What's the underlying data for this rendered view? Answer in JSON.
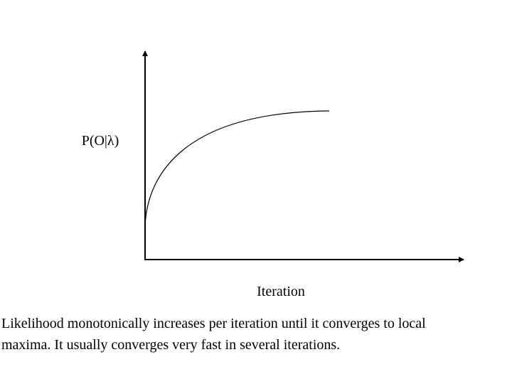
{
  "diagram": {
    "y_axis_label": "P(O|λ)",
    "x_axis_label": "Iteration"
  },
  "caption": {
    "lines": [
      "Likelihood monotonically increases per iteration until it converges to local",
      "maxima. It usually converges very fast in several iterations."
    ]
  }
}
